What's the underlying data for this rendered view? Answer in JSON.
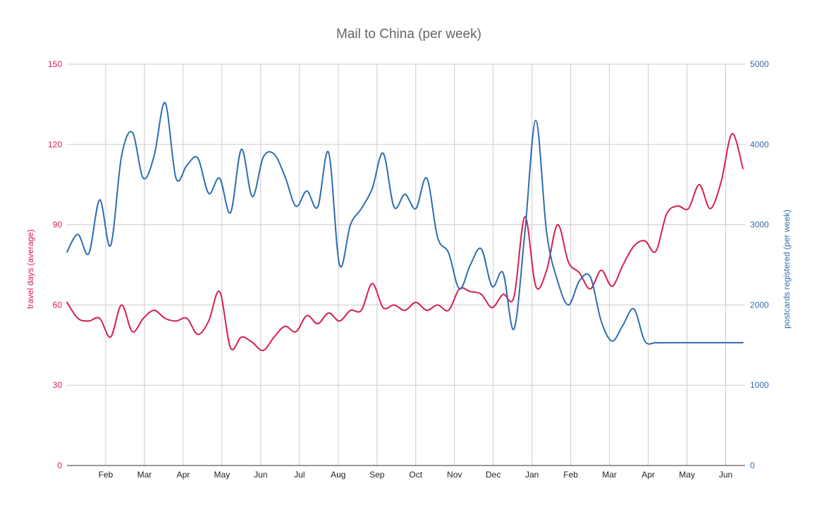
{
  "chart_data": {
    "type": "line",
    "title": "Mail to China (per week)",
    "ylabel_left": "travel days (average)",
    "ylabel_right": "postcards registered (per week)",
    "ylim_left": [
      0,
      150
    ],
    "ylim_right": [
      0,
      5000
    ],
    "yticks_left": [
      0,
      30,
      60,
      90,
      120,
      150
    ],
    "yticks_right": [
      0,
      1000,
      2000,
      3000,
      4000,
      5000
    ],
    "x_month_ticks": [
      {
        "label": "Feb",
        "week": 4
      },
      {
        "label": "Mar",
        "week": 8
      },
      {
        "label": "Apr",
        "week": 12
      },
      {
        "label": "May",
        "week": 16
      },
      {
        "label": "Jun",
        "week": 20
      },
      {
        "label": "Jul",
        "week": 24
      },
      {
        "label": "Aug",
        "week": 28
      },
      {
        "label": "Sep",
        "week": 32
      },
      {
        "label": "Oct",
        "week": 36
      },
      {
        "label": "Nov",
        "week": 40
      },
      {
        "label": "Dec",
        "week": 44
      },
      {
        "label": "Jan",
        "week": 48
      },
      {
        "label": "Feb",
        "week": 52
      },
      {
        "label": "Mar",
        "week": 56
      },
      {
        "label": "Apr",
        "week": 60
      },
      {
        "label": "May",
        "week": 64
      },
      {
        "label": "Jun",
        "week": 68
      }
    ],
    "grid": true,
    "colors": {
      "left_series": "#d6204d",
      "right_series": "#2f6db1",
      "title": "#666666"
    },
    "series": [
      {
        "name": "travel days (average)",
        "axis": "left",
        "color": "#d6204d",
        "x": [
          0,
          1,
          2,
          3,
          4,
          5,
          6,
          7,
          8,
          9,
          10,
          11,
          12,
          13,
          14,
          15,
          16,
          17,
          18,
          19,
          20,
          21,
          22,
          23,
          24,
          25,
          26,
          27,
          28,
          29,
          30,
          31,
          32,
          33,
          34,
          35,
          36,
          37,
          38,
          39,
          40,
          41,
          42,
          43,
          44,
          45,
          46,
          47,
          48,
          49,
          50,
          51,
          52,
          53,
          54,
          55,
          56,
          57,
          58,
          59,
          60,
          61,
          62,
          63,
          64,
          65,
          66,
          67,
          68,
          69,
          70
        ],
        "values": [
          61,
          55,
          54,
          55,
          48,
          60,
          50,
          55,
          58,
          55,
          54,
          55,
          49,
          54,
          65,
          44,
          48,
          46,
          43,
          48,
          52,
          50,
          56,
          53,
          57,
          54,
          58,
          58,
          68,
          59,
          60,
          58,
          61,
          58,
          60,
          58,
          66,
          65,
          64,
          59,
          64,
          63,
          93,
          67,
          73,
          90,
          76,
          72,
          66,
          73,
          67,
          75,
          82,
          84,
          80,
          94,
          97,
          96,
          105,
          96,
          106,
          124,
          111,
          110,
          110,
          110,
          110,
          110,
          110,
          110,
          110
        ]
      },
      {
        "name": "postcards registered (per week)",
        "axis": "right",
        "color": "#2f6db1",
        "x": [
          0,
          1,
          2,
          3,
          4,
          5,
          6,
          7,
          8,
          9,
          10,
          11,
          12,
          13,
          14,
          15,
          16,
          17,
          18,
          19,
          20,
          21,
          22,
          23,
          24,
          25,
          26,
          27,
          28,
          29,
          30,
          31,
          32,
          33,
          34,
          35,
          36,
          37,
          38,
          39,
          40,
          41,
          42,
          43,
          44,
          45,
          46,
          47,
          48,
          49,
          50,
          51,
          52,
          53,
          54,
          55,
          56,
          57,
          58,
          59,
          60,
          61,
          62,
          63,
          64,
          65,
          66,
          67,
          68,
          69,
          70
        ],
        "values": [
          2660,
          2880,
          2640,
          3310,
          2740,
          3850,
          4150,
          3580,
          3860,
          4520,
          3580,
          3740,
          3830,
          3390,
          3580,
          3150,
          3940,
          3350,
          3840,
          3880,
          3600,
          3230,
          3420,
          3220,
          3900,
          2500,
          3000,
          3200,
          3450,
          3890,
          3220,
          3380,
          3200,
          3580,
          2840,
          2650,
          2200,
          2500,
          2700,
          2230,
          2400,
          1700,
          2900,
          4300,
          2900,
          2300,
          2000,
          2300,
          2350,
          1800,
          1550,
          1750,
          1950,
          1550,
          1530,
          1530,
          1530,
          1530,
          1530,
          1530,
          1530,
          1530,
          1530,
          1530,
          1530,
          1530,
          1530,
          1530,
          1530,
          1530,
          1530
        ]
      }
    ]
  }
}
